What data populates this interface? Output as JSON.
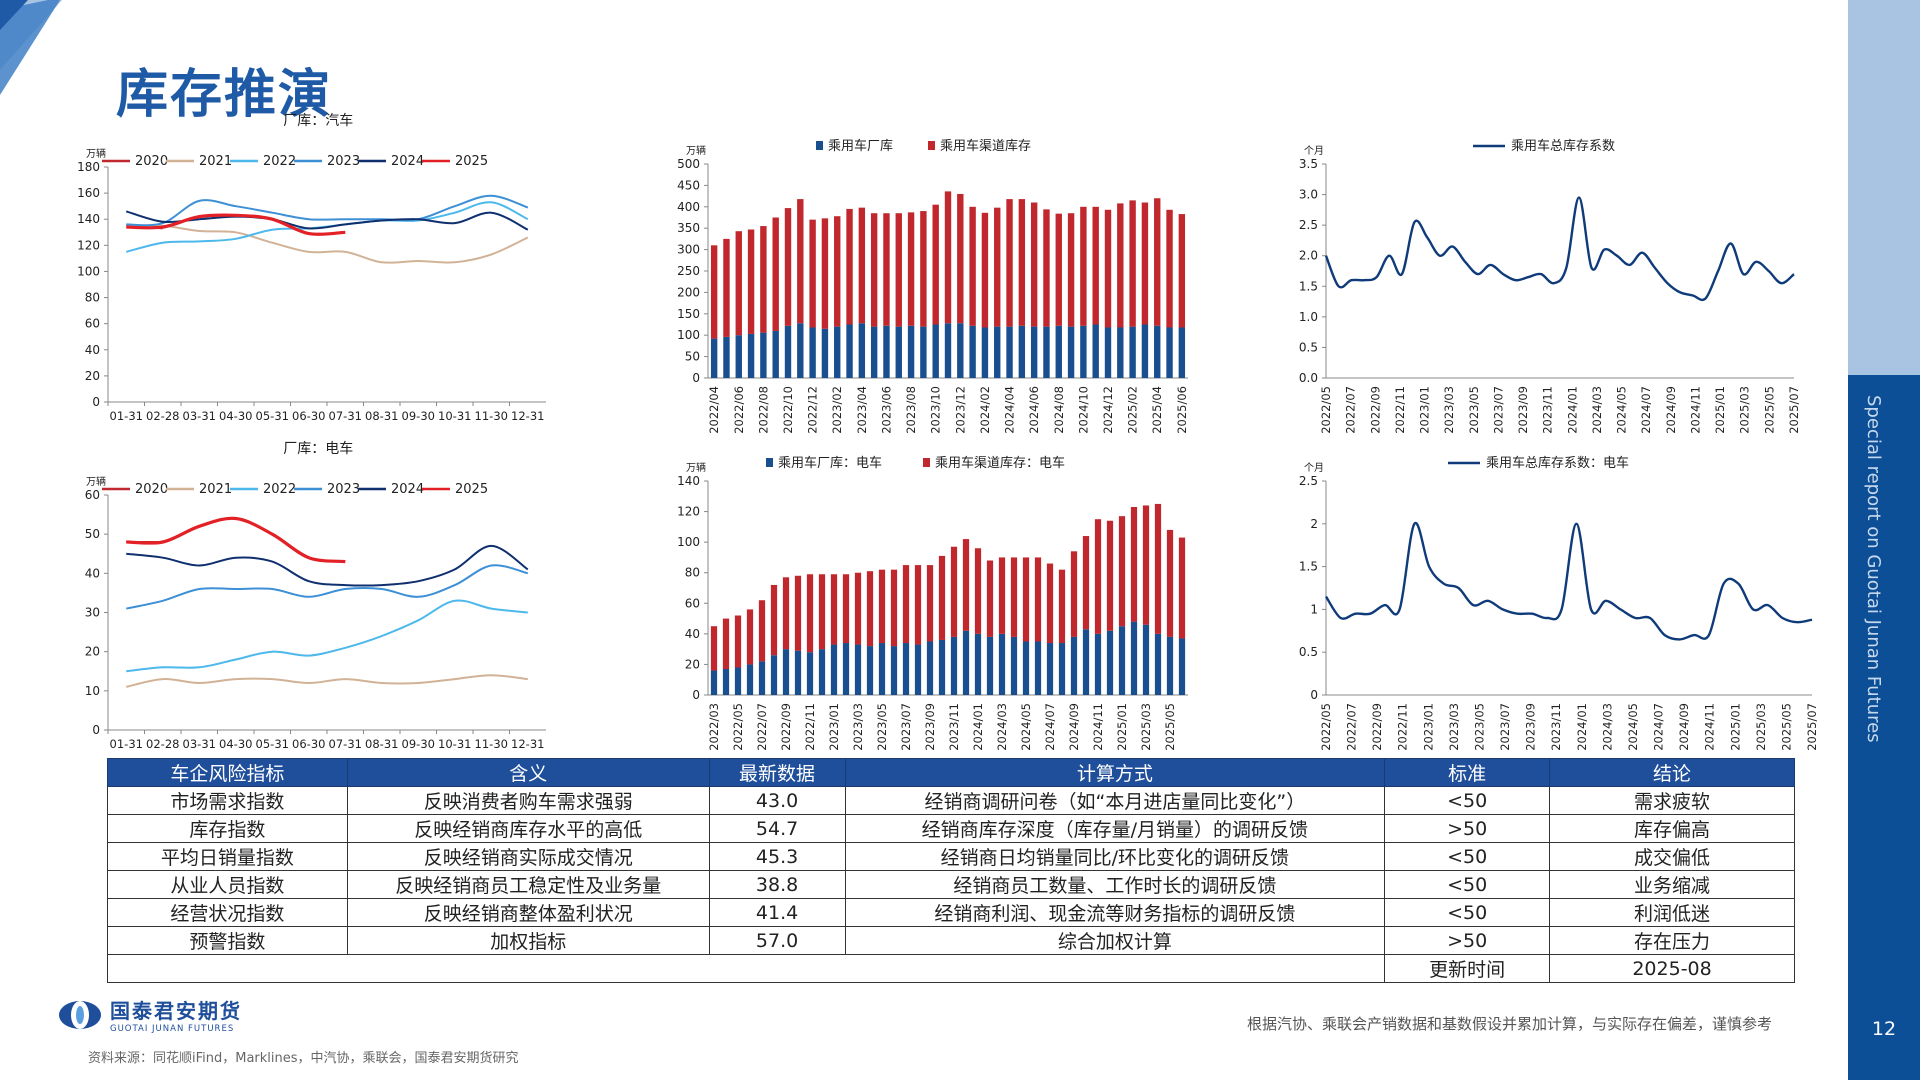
{
  "page": {
    "title": "库存推演",
    "side_text": "Special report on Guotai Junan Futures",
    "page_number": "12",
    "logo_cn": "国泰君安期货",
    "logo_en": "GUOTAI JUNAN FUTURES",
    "disclaimer": "根据汽协、乘联会产销数据和基数假设并累加计算，与实际存在偏差，谨慎参考",
    "source": "资料来源：同花顺iFind，Marklines，中汽协，乘联会，国泰君安期货研究"
  },
  "colors": {
    "brand": "#1f5aa6",
    "header_blue": "#1f4e9a",
    "bar_navy": "#1a4f8f",
    "bar_red": "#c0282d"
  },
  "chart_data": [
    {
      "type": "line",
      "title": "厂库：汽车",
      "ylabel": "万辆",
      "ylim": [
        0,
        180
      ],
      "yticks": [
        0,
        20,
        40,
        60,
        80,
        100,
        120,
        140,
        160,
        180
      ],
      "categories": [
        "01-31",
        "02-28",
        "03-31",
        "04-30",
        "05-31",
        "06-30",
        "07-31",
        "08-31",
        "09-30",
        "10-31",
        "11-30",
        "12-31"
      ],
      "series": [
        {
          "name": "2020",
          "color": "#c0282d",
          "values": [
            135,
            133,
            null,
            null,
            null,
            null,
            null,
            null,
            null,
            null,
            null,
            null
          ]
        },
        {
          "name": "2021",
          "color": "#d2b296",
          "values": [
            135,
            135,
            131,
            130,
            122,
            115,
            115,
            107,
            108,
            107,
            113,
            126
          ]
        },
        {
          "name": "2022",
          "color": "#4cb8ec",
          "values": [
            115,
            122,
            123,
            125,
            132,
            133,
            136,
            139,
            139,
            145,
            153,
            140
          ]
        },
        {
          "name": "2023",
          "color": "#3d8fd6",
          "values": [
            136,
            137,
            154,
            150,
            145,
            140,
            140,
            140,
            140,
            150,
            158,
            149
          ]
        },
        {
          "name": "2024",
          "color": "#0f2f6e",
          "values": [
            146,
            138,
            140,
            142,
            140,
            133,
            136,
            139,
            140,
            137,
            145,
            132
          ]
        },
        {
          "name": "2025",
          "color": "#e32026",
          "values": [
            134,
            134,
            142,
            143,
            140,
            129,
            130,
            null,
            null,
            null,
            null,
            null
          ]
        }
      ]
    },
    {
      "type": "bar",
      "stacked": true,
      "ylabel": "万辆",
      "ylim": [
        0,
        500
      ],
      "yticks": [
        0,
        50,
        100,
        150,
        200,
        250,
        300,
        350,
        400,
        450,
        500
      ],
      "categories": [
        "2022/04",
        "2022/05",
        "2022/06",
        "2022/07",
        "2022/08",
        "2022/09",
        "2022/10",
        "2022/11",
        "2022/12",
        "2023/01",
        "2023/02",
        "2023/03",
        "2023/04",
        "2023/05",
        "2023/06",
        "2023/07",
        "2023/08",
        "2023/09",
        "2023/10",
        "2023/11",
        "2023/12",
        "2024/01",
        "2024/02",
        "2024/03",
        "2024/04",
        "2024/05",
        "2024/06",
        "2024/07",
        "2024/08",
        "2024/09",
        "2024/10",
        "2024/11",
        "2024/12",
        "2025/01",
        "2025/02",
        "2025/03",
        "2025/04",
        "2025/05",
        "2025/06"
      ],
      "xticks": [
        "2022/04",
        "2022/06",
        "2022/08",
        "2022/10",
        "2022/12",
        "2023/02",
        "2023/04",
        "2023/06",
        "2023/08",
        "2023/10",
        "2023/12",
        "2024/02",
        "2024/04",
        "2024/06",
        "2024/08",
        "2024/10",
        "2024/12",
        "2025/02",
        "2025/04",
        "2025/06"
      ],
      "series": [
        {
          "name": "乘用车厂库",
          "color": "#1a4f8f",
          "values": [
            92,
            96,
            100,
            103,
            106,
            110,
            122,
            128,
            118,
            115,
            120,
            125,
            128,
            120,
            122,
            120,
            122,
            120,
            125,
            128,
            128,
            122,
            118,
            120,
            120,
            122,
            120,
            120,
            122,
            120,
            122,
            125,
            118,
            118,
            120,
            125,
            122,
            118,
            118
          ]
        },
        {
          "name": "乘用车渠道库存",
          "color": "#c0282d",
          "values": [
            218,
            229,
            243,
            244,
            249,
            265,
            275,
            290,
            252,
            258,
            258,
            270,
            270,
            265,
            263,
            265,
            265,
            270,
            280,
            308,
            302,
            278,
            268,
            278,
            298,
            296,
            290,
            274,
            262,
            265,
            278,
            275,
            275,
            290,
            295,
            285,
            298,
            275,
            265
          ]
        }
      ]
    },
    {
      "type": "line",
      "ylabel": "个月",
      "ylim": [
        0,
        3.5
      ],
      "yticks": [
        "0.0",
        "0.5",
        "1.0",
        "1.5",
        "2.0",
        "2.5",
        "3.0",
        "3.5"
      ],
      "xticks": [
        "2022/05",
        "2022/07",
        "2022/09",
        "2022/11",
        "2023/01",
        "2023/03",
        "2023/05",
        "2023/07",
        "2023/09",
        "2023/11",
        "2024/01",
        "2024/03",
        "2024/05",
        "2024/07",
        "2024/09",
        "2024/11",
        "2025/01",
        "2025/03",
        "2025/05",
        "2025/07"
      ],
      "series": [
        {
          "name": "乘用车总库存系数",
          "color": "#0f3b7a",
          "values": [
            2.0,
            1.5,
            1.6,
            1.6,
            1.65,
            2.0,
            1.7,
            2.55,
            2.3,
            2.0,
            2.15,
            1.9,
            1.7,
            1.85,
            1.7,
            1.6,
            1.65,
            1.7,
            1.55,
            1.8,
            2.95,
            1.8,
            2.1,
            2.0,
            1.85,
            2.05,
            1.8,
            1.55,
            1.4,
            1.35,
            1.3,
            1.75,
            2.2,
            1.7,
            1.9,
            1.75,
            1.55,
            1.7
          ]
        }
      ]
    },
    {
      "type": "line",
      "title": "厂库：电车",
      "ylabel": "万辆",
      "ylim": [
        0,
        60
      ],
      "yticks": [
        0,
        10,
        20,
        30,
        40,
        50,
        60
      ],
      "categories": [
        "01-31",
        "02-28",
        "03-31",
        "04-30",
        "05-31",
        "06-30",
        "07-31",
        "08-31",
        "09-30",
        "10-31",
        "11-30",
        "12-31"
      ],
      "series": [
        {
          "name": "2020",
          "color": "#c0282d",
          "values": [
            48,
            48,
            null,
            null,
            null,
            null,
            null,
            null,
            null,
            null,
            null,
            null
          ]
        },
        {
          "name": "2021",
          "color": "#d2b296",
          "values": [
            11,
            13,
            12,
            13,
            13,
            12,
            13,
            12,
            12,
            13,
            14,
            13
          ]
        },
        {
          "name": "2022",
          "color": "#4cb8ec",
          "values": [
            15,
            16,
            16,
            18,
            20,
            19,
            21,
            24,
            28,
            33,
            31,
            30
          ]
        },
        {
          "name": "2023",
          "color": "#3d8fd6",
          "values": [
            31,
            33,
            36,
            36,
            36,
            34,
            36,
            36,
            34,
            37,
            42,
            40
          ]
        },
        {
          "name": "2024",
          "color": "#0f2f6e",
          "values": [
            45,
            44,
            42,
            44,
            43,
            38,
            37,
            37,
            38,
            41,
            47,
            41
          ]
        },
        {
          "name": "2025",
          "color": "#e32026",
          "values": [
            48,
            48,
            52,
            54,
            50,
            44,
            43,
            null,
            null,
            null,
            null,
            null
          ]
        }
      ]
    },
    {
      "type": "bar",
      "stacked": true,
      "ylabel": "万辆",
      "ylim": [
        0,
        140
      ],
      "yticks": [
        0,
        20,
        40,
        60,
        80,
        100,
        120,
        140
      ],
      "categories": [
        "2022/03",
        "2022/04",
        "2022/05",
        "2022/06",
        "2022/07",
        "2022/08",
        "2022/09",
        "2022/10",
        "2022/11",
        "2022/12",
        "2023/01",
        "2023/02",
        "2023/03",
        "2023/04",
        "2023/05",
        "2023/06",
        "2023/07",
        "2023/08",
        "2023/09",
        "2023/10",
        "2023/11",
        "2023/12",
        "2024/01",
        "2024/02",
        "2024/03",
        "2024/04",
        "2024/05",
        "2024/06",
        "2024/07",
        "2024/08",
        "2024/09",
        "2024/10",
        "2024/11",
        "2024/12",
        "2025/01",
        "2025/02",
        "2025/03",
        "2025/04",
        "2025/05",
        "2025/06"
      ],
      "xticks": [
        "2022/03",
        "2022/05",
        "2022/07",
        "2022/09",
        "2022/11",
        "2023/01",
        "2023/03",
        "2023/05",
        "2023/07",
        "2023/09",
        "2023/11",
        "2024/01",
        "2024/03",
        "2024/05",
        "2024/07",
        "2024/09",
        "2024/11",
        "2025/01",
        "2025/03",
        "2025/05"
      ],
      "series": [
        {
          "name": "乘用车厂库：电车",
          "color": "#1a4f8f",
          "values": [
            16,
            17,
            18,
            20,
            22,
            26,
            30,
            29,
            28,
            30,
            33,
            34,
            33,
            32,
            34,
            32,
            34,
            33,
            35,
            36,
            38,
            42,
            40,
            38,
            40,
            38,
            35,
            35,
            34,
            34,
            38,
            43,
            40,
            42,
            45,
            48,
            46,
            40,
            38,
            37
          ]
        },
        {
          "name": "乘用车渠道库存：电车",
          "color": "#c0282d",
          "values": [
            29,
            33,
            34,
            36,
            40,
            46,
            47,
            49,
            51,
            49,
            46,
            45,
            47,
            49,
            48,
            50,
            51,
            52,
            50,
            55,
            59,
            60,
            56,
            50,
            50,
            52,
            55,
            55,
            52,
            48,
            56,
            61,
            75,
            72,
            72,
            75,
            78,
            85,
            70,
            66
          ]
        }
      ]
    },
    {
      "type": "line",
      "ylabel": "个月",
      "ylim": [
        0,
        2.5
      ],
      "yticks": [
        "0",
        "0.5",
        "1",
        "1.5",
        "2",
        "2.5"
      ],
      "xticks": [
        "2022/05",
        "2022/07",
        "2022/09",
        "2022/11",
        "2023/01",
        "2023/03",
        "2023/05",
        "2023/07",
        "2023/09",
        "2023/11",
        "2024/01",
        "2024/03",
        "2024/05",
        "2024/07",
        "2024/09",
        "2024/11",
        "2025/01",
        "2025/03",
        "2025/05",
        "2025/07"
      ],
      "series": [
        {
          "name": "乘用车总库存系数：电车",
          "color": "#0f3b7a",
          "values": [
            1.15,
            0.9,
            0.95,
            0.95,
            1.05,
            1.0,
            2.0,
            1.5,
            1.3,
            1.25,
            1.05,
            1.1,
            1.0,
            0.95,
            0.95,
            0.9,
            1.0,
            2.0,
            1.0,
            1.1,
            1.0,
            0.9,
            0.9,
            0.7,
            0.65,
            0.7,
            0.7,
            1.3,
            1.3,
            1.0,
            1.05,
            0.9,
            0.85,
            0.88
          ]
        }
      ]
    }
  ],
  "table": {
    "headers": [
      "车企风险指标",
      "含义",
      "最新数据",
      "计算方式",
      "标准",
      "结论"
    ],
    "rows": [
      [
        "市场需求指数",
        "反映消费者购车需求强弱",
        "43.0",
        "经销商调研问卷（如“本月进店量同比变化”）",
        "<50",
        "需求疲软"
      ],
      [
        "库存指数",
        "反映经销商库存水平的高低",
        "54.7",
        "经销商库存深度（库存量/月销量）的调研反馈",
        ">50",
        "库存偏高"
      ],
      [
        "平均日销量指数",
        "反映经销商实际成交情况",
        "45.3",
        "经销商日均销量同比/环比变化的调研反馈",
        "<50",
        "成交偏低"
      ],
      [
        "从业人员指数",
        "反映经销商员工稳定性及业务量",
        "38.8",
        "经销商员工数量、工作时长的调研反馈",
        "<50",
        "业务缩减"
      ],
      [
        "经营状况指数",
        "反映经销商整体盈利状况",
        "41.4",
        "经销商利润、现金流等财务指标的调研反馈",
        "<50",
        "利润低迷"
      ],
      [
        "预警指数",
        "加权指标",
        "57.0",
        "综合加权计算",
        ">50",
        "存在压力"
      ]
    ],
    "update_label": "更新时间",
    "update_value": "2025-08"
  }
}
